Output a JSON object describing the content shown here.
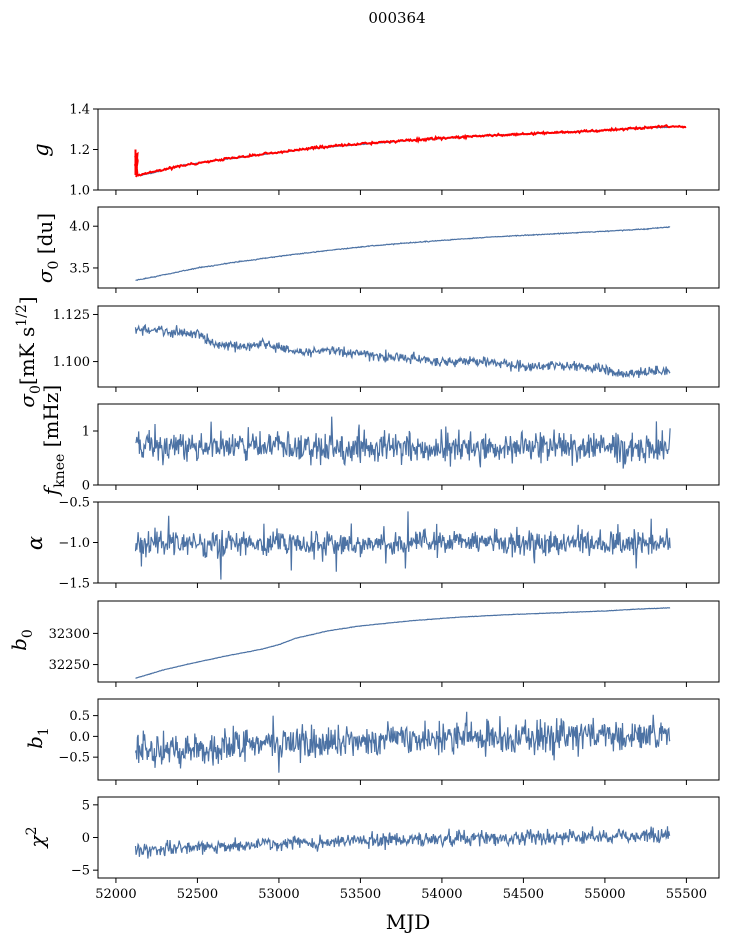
{
  "figure": {
    "title": "000364",
    "xlabel": "MJD",
    "x_ticks": [
      52000,
      52500,
      53000,
      53500,
      54000,
      54500,
      55000,
      55500
    ],
    "colors": {
      "series": "#4c72a4",
      "highlight": "#ff0000",
      "axes": "#000000"
    }
  },
  "chart_data": [
    {
      "type": "line",
      "ylabel": "g",
      "xlim": [
        51890,
        55700
      ],
      "ylim": [
        1.0,
        1.4
      ],
      "y_ticks": [
        1.0,
        1.2,
        1.4
      ],
      "tick_decimals": 1,
      "x": [
        52120,
        52200,
        52400,
        52600,
        52800,
        53000,
        53200,
        53500,
        53800,
        54000,
        54300,
        54600,
        54900,
        55100,
        55300,
        55400
      ],
      "y": [
        1.07,
        1.08,
        1.12,
        1.145,
        1.165,
        1.185,
        1.205,
        1.225,
        1.245,
        1.255,
        1.27,
        1.28,
        1.29,
        1.3,
        1.31,
        1.31
      ],
      "series_color": "#4c72a4",
      "overlay": {
        "color": "#ff0000",
        "x": [
          52120,
          52150,
          52200,
          52400,
          52600,
          52800,
          53000,
          53200,
          53500,
          53800,
          54000,
          54300,
          54600,
          54900,
          55100,
          55300,
          55400,
          55500
        ],
        "y": [
          1.07,
          1.075,
          1.085,
          1.12,
          1.145,
          1.168,
          1.186,
          1.207,
          1.228,
          1.245,
          1.256,
          1.27,
          1.28,
          1.29,
          1.3,
          1.31,
          1.315,
          1.31
        ],
        "spike": {
          "x": 52120,
          "y_low": 1.06,
          "y_high": 1.2
        }
      }
    },
    {
      "type": "line",
      "ylabel": "σ0 [du]",
      "xlim": [
        51890,
        55700
      ],
      "ylim": [
        3.26,
        4.23
      ],
      "y_ticks": [
        3.5,
        4.0
      ],
      "tick_decimals": 1,
      "x": [
        52120,
        52300,
        52500,
        52700,
        53000,
        53300,
        53600,
        54000,
        54300,
        54700,
        55000,
        55200,
        55400
      ],
      "y": [
        3.35,
        3.42,
        3.5,
        3.56,
        3.64,
        3.71,
        3.77,
        3.83,
        3.87,
        3.91,
        3.94,
        3.96,
        3.99
      ],
      "series_color": "#4c72a4"
    },
    {
      "type": "line",
      "ylabel": "σ0[mK s1/2]",
      "xlim": [
        51890,
        55700
      ],
      "ylim": [
        1.0865,
        1.1295
      ],
      "y_ticks": [
        1.1,
        1.125
      ],
      "tick_decimals": 3,
      "x": [
        52120,
        52300,
        52500,
        52600,
        52800,
        52900,
        53100,
        53300,
        53600,
        53800,
        54000,
        54300,
        54500,
        54700,
        54900,
        55000,
        55100,
        55200,
        55400
      ],
      "y": [
        1.117,
        1.116,
        1.115,
        1.109,
        1.108,
        1.11,
        1.105,
        1.106,
        1.103,
        1.102,
        1.1,
        1.1,
        1.097,
        1.098,
        1.097,
        1.096,
        1.093,
        1.094,
        1.095
      ],
      "series_color": "#4c72a4"
    },
    {
      "type": "line",
      "ylabel": "fknee [mHz]",
      "xlim": [
        51890,
        55700
      ],
      "ylim": [
        0,
        1.5
      ],
      "y_ticks": [
        0,
        1
      ],
      "tick_decimals": 0,
      "x": [
        52120,
        52300,
        52600,
        52900,
        53200,
        53500,
        53800,
        54100,
        54400,
        54700,
        55000,
        55200,
        55400
      ],
      "y": [
        0.7,
        0.72,
        0.68,
        0.7,
        0.69,
        0.71,
        0.68,
        0.7,
        0.69,
        0.7,
        0.68,
        0.69,
        0.7
      ],
      "series_color": "#4c72a4"
    },
    {
      "type": "line",
      "ylabel": "α",
      "xlim": [
        51890,
        55700
      ],
      "ylim": [
        -1.5,
        -0.5
      ],
      "y_ticks": [
        -1.5,
        -1.0,
        -0.5
      ],
      "tick_decimals": 1,
      "x": [
        52120,
        52300,
        52600,
        52900,
        53200,
        53500,
        53800,
        54100,
        54400,
        54700,
        55000,
        55200,
        55400
      ],
      "y": [
        -1.0,
        -1.0,
        -1.01,
        -1.0,
        -1.0,
        -1.01,
        -1.0,
        -0.99,
        -1.0,
        -1.0,
        -1.01,
        -1.0,
        -1.0
      ],
      "series_color": "#4c72a4"
    },
    {
      "type": "line",
      "ylabel": "b0",
      "xlim": [
        51890,
        55700
      ],
      "ylim": [
        32222,
        32352
      ],
      "y_ticks": [
        32250,
        32300
      ],
      "tick_decimals": 0,
      "x": [
        52120,
        52300,
        52500,
        52700,
        52900,
        53000,
        53100,
        53300,
        53500,
        53800,
        54100,
        54400,
        54700,
        55000,
        55200,
        55400
      ],
      "y": [
        32228,
        32242,
        32254,
        32265,
        32275,
        32282,
        32292,
        32304,
        32312,
        32320,
        32326,
        32330,
        32333,
        32336,
        32339,
        32341
      ],
      "series_color": "#4c72a4"
    },
    {
      "type": "line",
      "ylabel": "b1",
      "xlim": [
        51890,
        55700
      ],
      "ylim": [
        -1.05,
        0.9
      ],
      "y_ticks": [
        -0.5,
        0.0,
        0.5
      ],
      "tick_decimals": 1,
      "x": [
        52120,
        52300,
        52600,
        52900,
        53200,
        53500,
        53800,
        54100,
        54400,
        54700,
        55000,
        55200,
        55400
      ],
      "y": [
        -0.35,
        -0.3,
        -0.25,
        -0.2,
        -0.15,
        -0.12,
        -0.08,
        -0.05,
        -0.02,
        0.0,
        0.02,
        0.02,
        0.03
      ],
      "series_color": "#4c72a4"
    },
    {
      "type": "line",
      "ylabel": "χ2",
      "xlim": [
        51890,
        55700
      ],
      "ylim": [
        -6.2,
        6.2
      ],
      "y_ticks": [
        -5,
        0,
        5
      ],
      "tick_decimals": 0,
      "x": [
        52120,
        52300,
        52600,
        52900,
        53200,
        53500,
        53800,
        54100,
        54400,
        54700,
        55000,
        55200,
        55400
      ],
      "y": [
        -2.0,
        -1.7,
        -1.3,
        -1.0,
        -0.8,
        -0.5,
        -0.3,
        -0.2,
        -0.1,
        0.0,
        0.1,
        0.2,
        0.2
      ],
      "series_color": "#4c72a4"
    }
  ]
}
